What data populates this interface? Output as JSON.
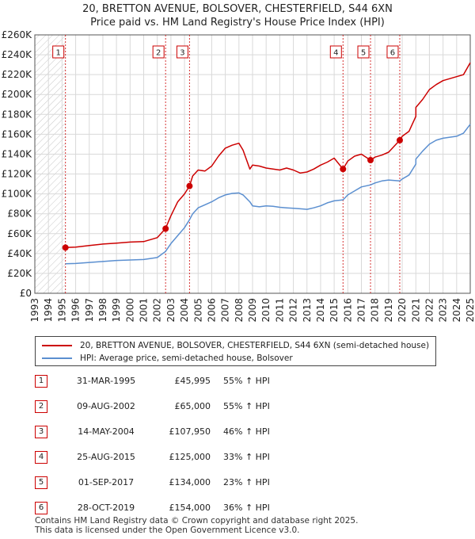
{
  "title": "20, BRETTON AVENUE, BOLSOVER, CHESTERFIELD, S44 6XN",
  "subtitle": "Price paid vs. HM Land Registry's House Price Index (HPI)",
  "colors": {
    "property": "#cc0000",
    "hpi": "#5b8fd0",
    "sale_marker": "#cc0000",
    "shading": "#dde6f3"
  },
  "legend": {
    "property_label": "20, BRETTON AVENUE, BOLSOVER, CHESTERFIELD, S44 6XN (semi-detached house)",
    "hpi_label": "HPI: Average price, semi-detached house, Bolsover"
  },
  "sales": [
    {
      "num": "1",
      "date": "31-MAR-1995",
      "price": "£45,995",
      "hpi": "55% ↑ HPI"
    },
    {
      "num": "2",
      "date": "09-AUG-2002",
      "price": "£65,000",
      "hpi": "55% ↑ HPI"
    },
    {
      "num": "3",
      "date": "14-MAY-2004",
      "price": "£107,950",
      "hpi": "46% ↑ HPI"
    },
    {
      "num": "4",
      "date": "25-AUG-2015",
      "price": "£125,000",
      "hpi": "33% ↑ HPI"
    },
    {
      "num": "5",
      "date": "01-SEP-2017",
      "price": "£134,000",
      "hpi": "23% ↑ HPI"
    },
    {
      "num": "6",
      "date": "28-OCT-2019",
      "price": "£154,000",
      "hpi": "36% ↑ HPI"
    }
  ],
  "footer": {
    "line1": "Contains HM Land Registry data © Crown copyright and database right 2025.",
    "line2": "This data is licensed under the Open Government Licence v3.0."
  },
  "chart_data": {
    "type": "line",
    "title": "20, BRETTON AVENUE, BOLSOVER, CHESTERFIELD, S44 6XN",
    "subtitle": "Price paid vs. HM Land Registry's House Price Index (HPI)",
    "xlim": [
      1993,
      2025
    ],
    "ylim": [
      0,
      260000
    ],
    "x_ticks": [
      "1993",
      "1994",
      "1995",
      "1996",
      "1997",
      "1998",
      "1999",
      "2000",
      "2001",
      "2002",
      "2003",
      "2004",
      "2005",
      "2006",
      "2007",
      "2008",
      "2009",
      "2010",
      "2011",
      "2012",
      "2013",
      "2014",
      "2015",
      "2016",
      "2017",
      "2018",
      "2019",
      "2020",
      "2021",
      "2022",
      "2023",
      "2024",
      "2025"
    ],
    "y_ticks": [
      "£0",
      "£20K",
      "£40K",
      "£60K",
      "£80K",
      "£100K",
      "£120K",
      "£140K",
      "£160K",
      "£180K",
      "£200K",
      "£220K",
      "£240K",
      "£260K"
    ],
    "grid": true,
    "legend_position": "bottom",
    "hatch_before_year": 1995.25,
    "series": [
      {
        "name": "20, BRETTON AVENUE, BOLSOVER, CHESTERFIELD, S44 6XN (semi-detached house)",
        "x": [
          1995.25,
          1996,
          1997,
          1998,
          1999,
          2000,
          2001,
          2002,
          2002.6,
          2003,
          2003.5,
          2004,
          2004.37,
          2004.6,
          2005,
          2005.5,
          2006,
          2006.5,
          2007,
          2007.5,
          2008,
          2008.3,
          2008.8,
          2009,
          2009.5,
          2010,
          2010.5,
          2011,
          2011.5,
          2012,
          2012.5,
          2013,
          2013.5,
          2014,
          2014.5,
          2015,
          2015.65,
          2016,
          2016.5,
          2017,
          2017.67,
          2018,
          2018.5,
          2019,
          2019.82,
          2020,
          2020.5,
          2021,
          2021,
          2021.5,
          2022,
          2022.5,
          2023,
          2023.5,
          2024,
          2024.5,
          2025
        ],
        "y": [
          45995,
          46500,
          48000,
          49500,
          50500,
          51500,
          52000,
          56000,
          65000,
          78000,
          92000,
          100000,
          107950,
          118000,
          124000,
          123000,
          128000,
          138000,
          146000,
          149000,
          151000,
          144000,
          125000,
          129000,
          128000,
          126000,
          125000,
          124000,
          126000,
          124000,
          121000,
          122000,
          125000,
          129000,
          132000,
          136000,
          125000,
          133000,
          138000,
          140000,
          134000,
          137000,
          139000,
          142000,
          154000,
          158000,
          163000,
          178000,
          187000,
          195000,
          205000,
          210000,
          214000,
          216000,
          218000,
          220000,
          232000
        ]
      },
      {
        "name": "HPI: Average price, semi-detached house, Bolsover",
        "x": [
          1995.25,
          1996,
          1997,
          1998,
          1999,
          2000,
          2001,
          2002,
          2002.6,
          2003,
          2003.5,
          2004,
          2004.37,
          2004.6,
          2005,
          2005.5,
          2006,
          2006.5,
          2007,
          2007.5,
          2008,
          2008.3,
          2008.8,
          2009,
          2009.5,
          2010,
          2010.5,
          2011,
          2011.5,
          2012,
          2012.5,
          2013,
          2013.5,
          2014,
          2014.5,
          2015,
          2015.65,
          2016,
          2016.5,
          2017,
          2017.67,
          2018,
          2018.5,
          2019,
          2019.82,
          2020,
          2020.5,
          2021,
          2021,
          2021.5,
          2022,
          2022.5,
          2023,
          2023.5,
          2024,
          2024.5,
          2025
        ],
        "y": [
          29700,
          30000,
          31000,
          32000,
          33000,
          33500,
          34000,
          36000,
          42000,
          50000,
          58000,
          66000,
          74000,
          80000,
          86000,
          89000,
          92000,
          96000,
          99000,
          100500,
          101000,
          99000,
          92000,
          88000,
          87000,
          88000,
          87500,
          86500,
          86000,
          85500,
          85000,
          84500,
          86000,
          88000,
          91000,
          93000,
          94000,
          99000,
          103000,
          107000,
          109000,
          111000,
          113000,
          114000,
          113000,
          115000,
          119000,
          130000,
          135000,
          143000,
          150000,
          154000,
          156000,
          157000,
          158000,
          161000,
          170000
        ]
      }
    ],
    "sale_points": [
      {
        "label": "1",
        "x": 1995.25,
        "y": 45995
      },
      {
        "label": "2",
        "x": 2002.61,
        "y": 65000
      },
      {
        "label": "3",
        "x": 2004.37,
        "y": 107950
      },
      {
        "label": "4",
        "x": 2015.65,
        "y": 125000
      },
      {
        "label": "5",
        "x": 2017.67,
        "y": 134000
      },
      {
        "label": "6",
        "x": 2019.82,
        "y": 154000
      }
    ]
  }
}
